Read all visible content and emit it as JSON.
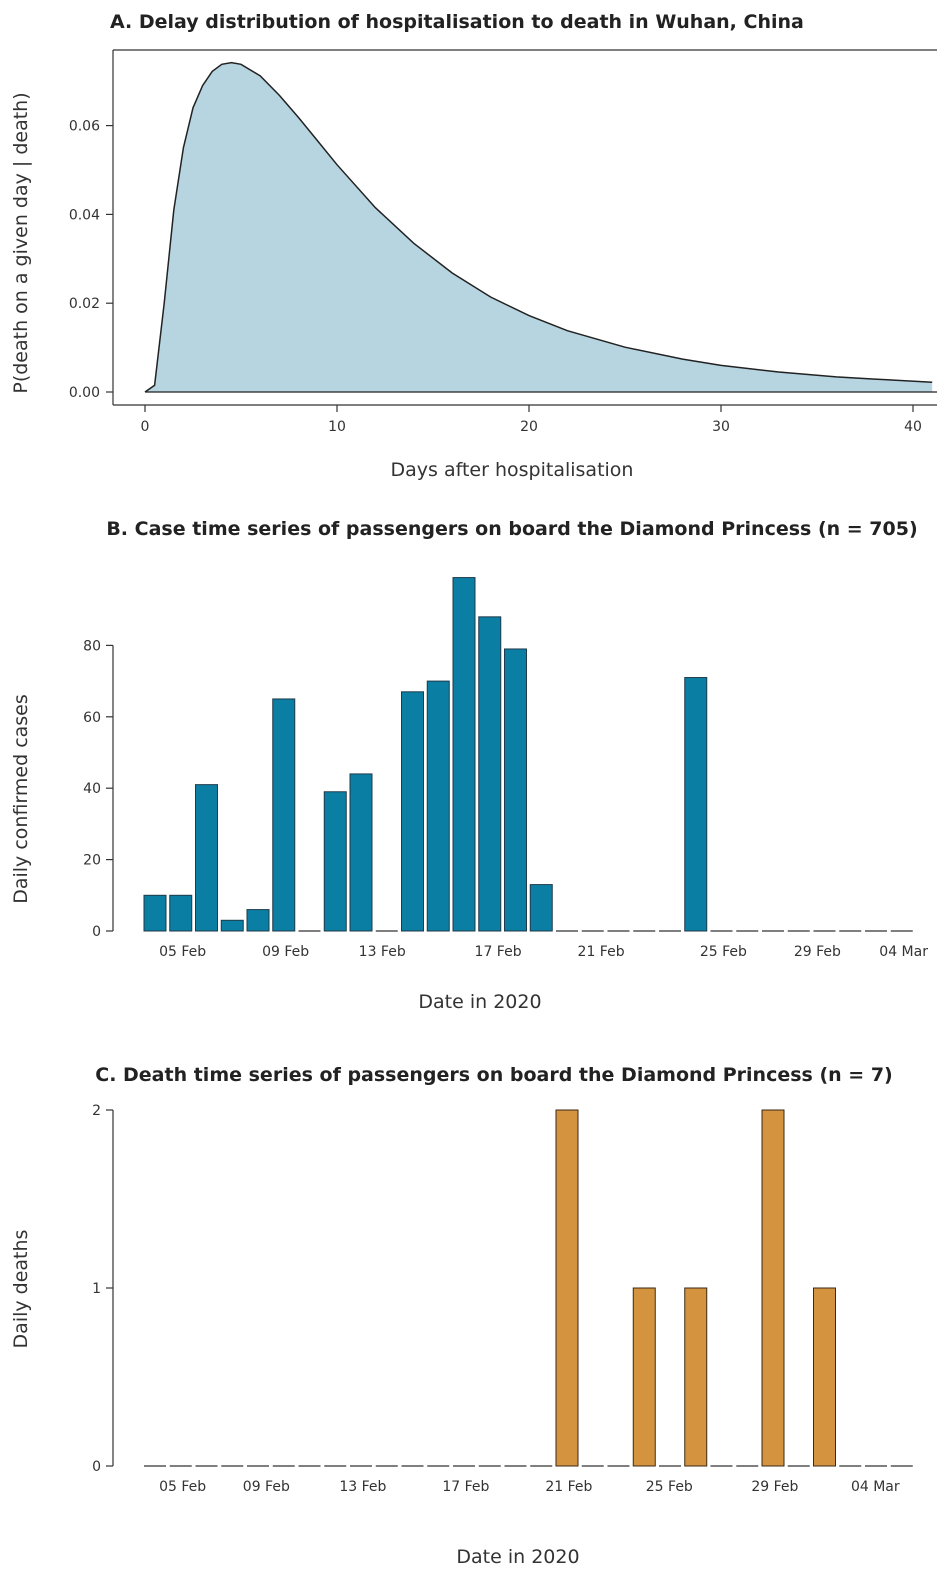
{
  "chart_data": [
    {
      "type": "area",
      "title": "A. Delay distribution of hospitalisation to death in Wuhan, China",
      "xlabel": "Days after hospitalisation",
      "ylabel": "P(death on a given day | death)",
      "xlim": [
        0,
        41
      ],
      "ylim": [
        0,
        0.07
      ],
      "x_ticks": [
        "0",
        "10",
        "20",
        "30",
        "40"
      ],
      "y_ticks": [
        "0.00",
        "0.02",
        "0.04",
        "0.06"
      ],
      "x": [
        0,
        0.5,
        1,
        1.5,
        2,
        2.5,
        3,
        3.5,
        4,
        4.5,
        5,
        6,
        7,
        8,
        9,
        10,
        12,
        14,
        16,
        18,
        20,
        22,
        25,
        28,
        30,
        33,
        36,
        38,
        41
      ],
      "values": [
        0,
        0.0015,
        0.02,
        0.041,
        0.055,
        0.064,
        0.069,
        0.0722,
        0.0738,
        0.0742,
        0.0738,
        0.0712,
        0.0668,
        0.0618,
        0.0565,
        0.0512,
        0.0415,
        0.0335,
        0.0268,
        0.0214,
        0.0172,
        0.0138,
        0.0101,
        0.0074,
        0.006,
        0.0045,
        0.0034,
        0.0029,
        0.0022
      ],
      "colors": {
        "fill": "#b6d5e1",
        "line": "#222222"
      }
    },
    {
      "type": "bar",
      "title": "B. Case time series of passengers on board the Diamond Princess (n = 705)",
      "xlabel": "Date in 2020",
      "ylabel": "Daily confirmed cases",
      "ylim": [
        0,
        100
      ],
      "y_ticks": [
        0,
        20,
        40,
        60,
        80
      ],
      "tick_labels": [
        {
          "label": "05 Feb",
          "at": 1.5
        },
        {
          "label": "09 Feb",
          "at": 5.5
        },
        {
          "label": "13 Feb",
          "at": 9.25
        },
        {
          "label": "17 Feb",
          "at": 13.75
        },
        {
          "label": "21 Feb",
          "at": 17.75
        },
        {
          "label": "25 Feb",
          "at": 22.5
        },
        {
          "label": "29 Feb",
          "at": 26.15
        },
        {
          "label": "04 Mar",
          "at": 29.5
        }
      ],
      "values": [
        10,
        10,
        41,
        3,
        6,
        65,
        0,
        39,
        44,
        0,
        67,
        70,
        99,
        88,
        79,
        13,
        0,
        0,
        0,
        0,
        0,
        71,
        0,
        0,
        0,
        0,
        0,
        0,
        0,
        0
      ],
      "colors": {
        "bar": "#0a7ea3",
        "edge": "#1f3a4a"
      }
    },
    {
      "type": "bar",
      "title": "C. Death time series of passengers on board the Diamond Princess (n = 7)",
      "xlabel": "Date in 2020",
      "ylabel": "Daily deaths",
      "ylim": [
        0,
        2
      ],
      "y_ticks": [
        0,
        1,
        2
      ],
      "tick_labels": [
        {
          "label": "05 Feb",
          "at": 1.5
        },
        {
          "label": "09 Feb",
          "at": 4.75
        },
        {
          "label": "13 Feb",
          "at": 8.5
        },
        {
          "label": "17 Feb",
          "at": 12.5
        },
        {
          "label": "21 Feb",
          "at": 16.5
        },
        {
          "label": "25 Feb",
          "at": 20.4
        },
        {
          "label": "29 Feb",
          "at": 24.5
        },
        {
          "label": "04 Mar",
          "at": 28.4
        }
      ],
      "values": [
        0,
        0,
        0,
        0,
        0,
        0,
        0,
        0,
        0,
        0,
        0,
        0,
        0,
        0,
        0,
        0,
        2,
        0,
        0,
        1,
        0,
        1,
        0,
        0,
        2,
        0,
        1,
        0,
        0,
        0
      ],
      "colors": {
        "bar": "#d4933f",
        "edge": "#3a2a14"
      }
    }
  ]
}
